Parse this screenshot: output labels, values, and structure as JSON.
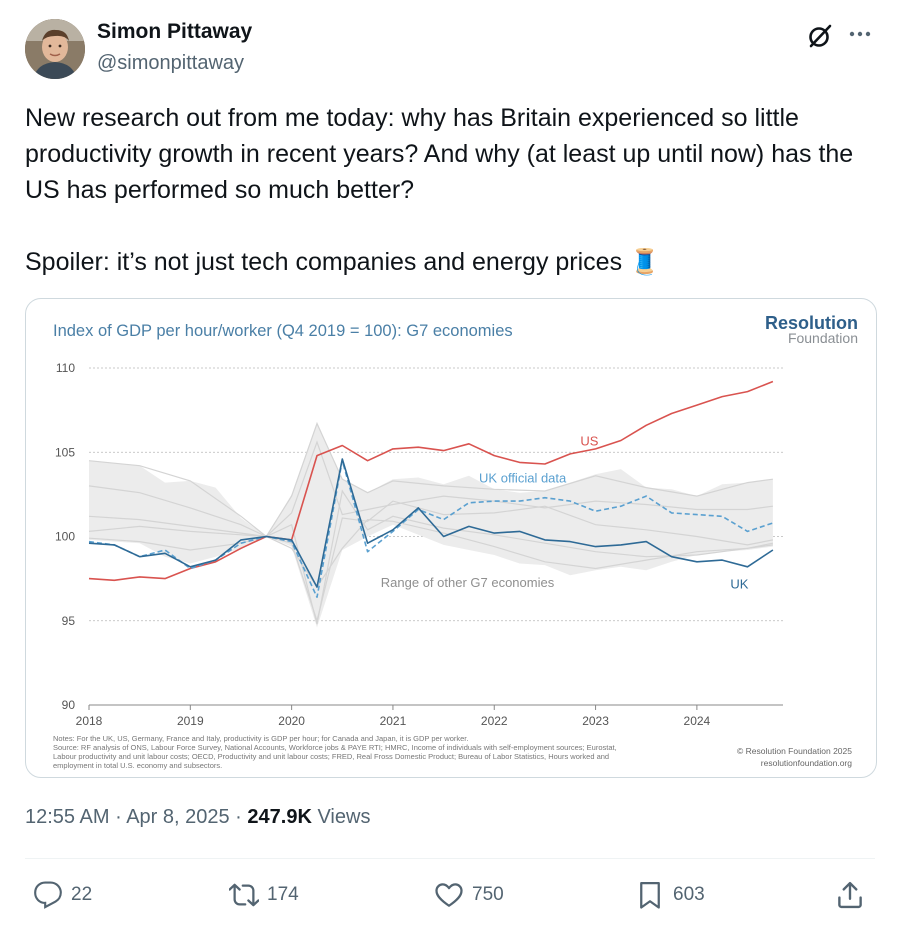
{
  "author": {
    "name": "Simon Pittaway",
    "handle": "@simonpittaway"
  },
  "tweet": {
    "line1": "New research out from me today: why has Britain experienced so little productivity growth in recent years? And why (at least up until now) has the US has performed so much better?",
    "line2": "Spoiler: it’s not just tech companies and energy prices",
    "emoji": "🧵"
  },
  "meta": {
    "time": "12:55 AM",
    "date": "Apr 8, 2025",
    "views_count": "247.9K",
    "views_label": "Views"
  },
  "actions": {
    "replies": "22",
    "reposts": "174",
    "likes": "750",
    "bookmarks": "603"
  },
  "icons": [
    "grok-icon",
    "more-icon",
    "reply-icon",
    "repost-icon",
    "like-icon",
    "bookmark-icon",
    "share-icon"
  ],
  "chart_data": {
    "type": "line",
    "title": "Index of GDP per hour/worker (Q4 2019 = 100): G7 economies",
    "brand": "Resolution",
    "brand_sub": "Foundation",
    "ylim": [
      90,
      110
    ],
    "yticks": [
      "110",
      "105",
      "100",
      "95",
      "90"
    ],
    "xlim": [
      2018,
      2024.85
    ],
    "xticks": [
      "2018",
      "2019",
      "2020",
      "2021",
      "2022",
      "2023",
      "2024"
    ],
    "annotations": {
      "us": "US",
      "uk_official": "UK official data",
      "range": "Range of other G7 economies",
      "uk": "UK"
    },
    "series": [
      {
        "name": "US",
        "color": "#d9534f",
        "x": [
          2018,
          2018.25,
          2018.5,
          2018.75,
          2019,
          2019.25,
          2019.5,
          2019.75,
          2020,
          2020.25,
          2020.5,
          2020.75,
          2021,
          2021.25,
          2021.5,
          2021.75,
          2022,
          2022.25,
          2022.5,
          2022.75,
          2023,
          2023.25,
          2023.5,
          2023.75,
          2024,
          2024.25,
          2024.5,
          2024.75
        ],
        "values": [
          97.5,
          97.4,
          97.6,
          97.5,
          98.1,
          98.5,
          99.3,
          100.0,
          99.8,
          104.8,
          105.4,
          104.5,
          105.2,
          105.3,
          105.1,
          105.5,
          104.8,
          104.4,
          104.3,
          104.9,
          105.2,
          105.7,
          106.6,
          107.3,
          107.8,
          108.3,
          108.6,
          109.2
        ]
      },
      {
        "name": "UK official data",
        "color": "#5aa0d0",
        "dashed": true,
        "x": [
          2018,
          2018.25,
          2018.5,
          2018.75,
          2019,
          2019.25,
          2019.5,
          2019.75,
          2020,
          2020.25,
          2020.5,
          2020.75,
          2021,
          2021.25,
          2021.5,
          2021.75,
          2022,
          2022.25,
          2022.5,
          2022.75,
          2023,
          2023.25,
          2023.5,
          2023.75,
          2024,
          2024.25,
          2024.5,
          2024.75
        ],
        "values": [
          99.7,
          99.5,
          98.8,
          99.2,
          98.1,
          98.6,
          99.6,
          100.0,
          99.7,
          96.4,
          104.5,
          99.1,
          100.3,
          101.6,
          101.0,
          102.0,
          102.1,
          102.1,
          102.3,
          102.1,
          101.5,
          101.8,
          102.4,
          101.4,
          101.3,
          101.2,
          100.3,
          100.8
        ]
      },
      {
        "name": "UK",
        "color": "#2e6a96",
        "x": [
          2018,
          2018.25,
          2018.5,
          2018.75,
          2019,
          2019.25,
          2019.5,
          2019.75,
          2020,
          2020.25,
          2020.5,
          2020.75,
          2021,
          2021.25,
          2021.5,
          2021.75,
          2022,
          2022.25,
          2022.5,
          2022.75,
          2023,
          2023.25,
          2023.5,
          2023.75,
          2024,
          2024.25,
          2024.5,
          2024.75
        ],
        "values": [
          99.6,
          99.5,
          98.8,
          99.0,
          98.2,
          98.6,
          99.8,
          100.0,
          99.8,
          97.0,
          104.6,
          99.6,
          100.4,
          101.7,
          100.0,
          100.6,
          100.2,
          100.3,
          99.8,
          99.7,
          99.4,
          99.5,
          99.7,
          98.8,
          98.5,
          98.6,
          98.2,
          99.2
        ]
      }
    ],
    "range_band": {
      "x": [
        2018,
        2018.5,
        2018.75,
        2019,
        2019.25,
        2019.5,
        2019.75,
        2020,
        2020.25,
        2020.5,
        2020.75,
        2021,
        2021.25,
        2021.5,
        2021.75,
        2022,
        2022.25,
        2022.5,
        2022.75,
        2023,
        2023.25,
        2023.5,
        2023.75,
        2024,
        2024.25,
        2024.5,
        2024.75
      ],
      "upper": [
        104.5,
        104.2,
        103.2,
        103.3,
        102.9,
        101.1,
        100.0,
        102.5,
        106.8,
        103.4,
        102.6,
        103.4,
        103.5,
        103.1,
        103.6,
        102.8,
        102.6,
        102.7,
        103.2,
        103.7,
        104.0,
        102.9,
        102.8,
        102.4,
        103.1,
        103.2,
        103.4
      ],
      "lower": [
        99.8,
        99.6,
        98.8,
        98.4,
        98.8,
        99.3,
        100.0,
        99.4,
        94.6,
        99.2,
        100.0,
        100.7,
        100.1,
        99.5,
        99.2,
        98.9,
        98.4,
        98.3,
        97.7,
        98.0,
        98.2,
        98.0,
        98.5,
        98.9,
        99.1,
        99.2,
        99.4
      ]
    },
    "other_lines": [
      {
        "x": [
          2018,
          2018.5,
          2019,
          2019.5,
          2019.75,
          2020,
          2020.25,
          2020.5,
          2020.75,
          2021,
          2021.5,
          2022,
          2022.5,
          2023,
          2023.5,
          2024,
          2024.5,
          2024.75
        ],
        "values": [
          104.5,
          104.2,
          103.3,
          101.2,
          100.0,
          102.4,
          106.7,
          103.4,
          102.6,
          103.3,
          103.0,
          102.8,
          102.7,
          103.6,
          102.9,
          102.4,
          103.2,
          103.4
        ]
      },
      {
        "x": [
          2018,
          2018.5,
          2019,
          2019.5,
          2019.75,
          2020,
          2020.25,
          2020.5,
          2020.75,
          2021,
          2021.5,
          2022,
          2022.5,
          2023,
          2023.5,
          2024,
          2024.5,
          2024.75
        ],
        "values": [
          100.3,
          100.6,
          100.3,
          100.1,
          100.0,
          99.6,
          95.0,
          101.1,
          100.9,
          102.1,
          101.3,
          101.4,
          101.8,
          100.7,
          100.4,
          100.0,
          99.5,
          99.8
        ]
      },
      {
        "x": [
          2018,
          2018.5,
          2019,
          2019.5,
          2019.75,
          2020,
          2020.25,
          2020.5,
          2020.75,
          2021,
          2021.5,
          2022,
          2022.5,
          2023,
          2023.5,
          2024,
          2024.5,
          2024.75
        ],
        "values": [
          99.9,
          99.7,
          99.2,
          99.6,
          100.0,
          100.7,
          94.8,
          102.7,
          100.4,
          101.2,
          100.5,
          100.1,
          99.6,
          99.1,
          98.8,
          98.9,
          99.3,
          99.6
        ]
      },
      {
        "x": [
          2018,
          2018.5,
          2019,
          2019.5,
          2019.75,
          2020,
          2020.25,
          2020.5,
          2020.75,
          2021,
          2021.5,
          2022,
          2022.5,
          2023,
          2023.5,
          2024,
          2024.5,
          2024.75
        ],
        "values": [
          101.2,
          101.0,
          100.6,
          100.2,
          100.0,
          99.3,
          97.0,
          99.3,
          101.0,
          100.9,
          100.2,
          99.4,
          98.5,
          98.1,
          98.6,
          99.1,
          99.3,
          99.5
        ]
      },
      {
        "x": [
          2018,
          2018.5,
          2019,
          2019.5,
          2019.75,
          2020,
          2020.25,
          2020.5,
          2020.75,
          2021,
          2021.5,
          2022,
          2022.5,
          2023,
          2023.5,
          2024,
          2024.5,
          2024.75
        ],
        "values": [
          103.0,
          102.6,
          101.7,
          100.7,
          100.0,
          101.4,
          105.6,
          101.3,
          101.6,
          101.9,
          102.4,
          102.1,
          101.7,
          102.1,
          101.9,
          101.6,
          101.6,
          101.8
        ]
      }
    ],
    "notes": [
      "Notes: For the UK, US, Germany, France and Italy, productivity is GDP per hour; for Canada and Japan, it is GDP per worker.",
      "Source: RF analysis of ONS, Labour Force Survey, National Accounts, Workforce jobs & PAYE RTI; HMRC, Income of individuals with self-employment sources; Eurostat,",
      "Labour productivity and unit labour costs; OECD, Productivity and unit labour costs; FRED, Real Fross Domestic Product; Bureau of Labor Statistics, Hours worked and",
      "employment in total U.S. economy and subsectors."
    ],
    "copyright": "© Resolution Foundation 2025",
    "site": "resolutionfoundation.org"
  }
}
